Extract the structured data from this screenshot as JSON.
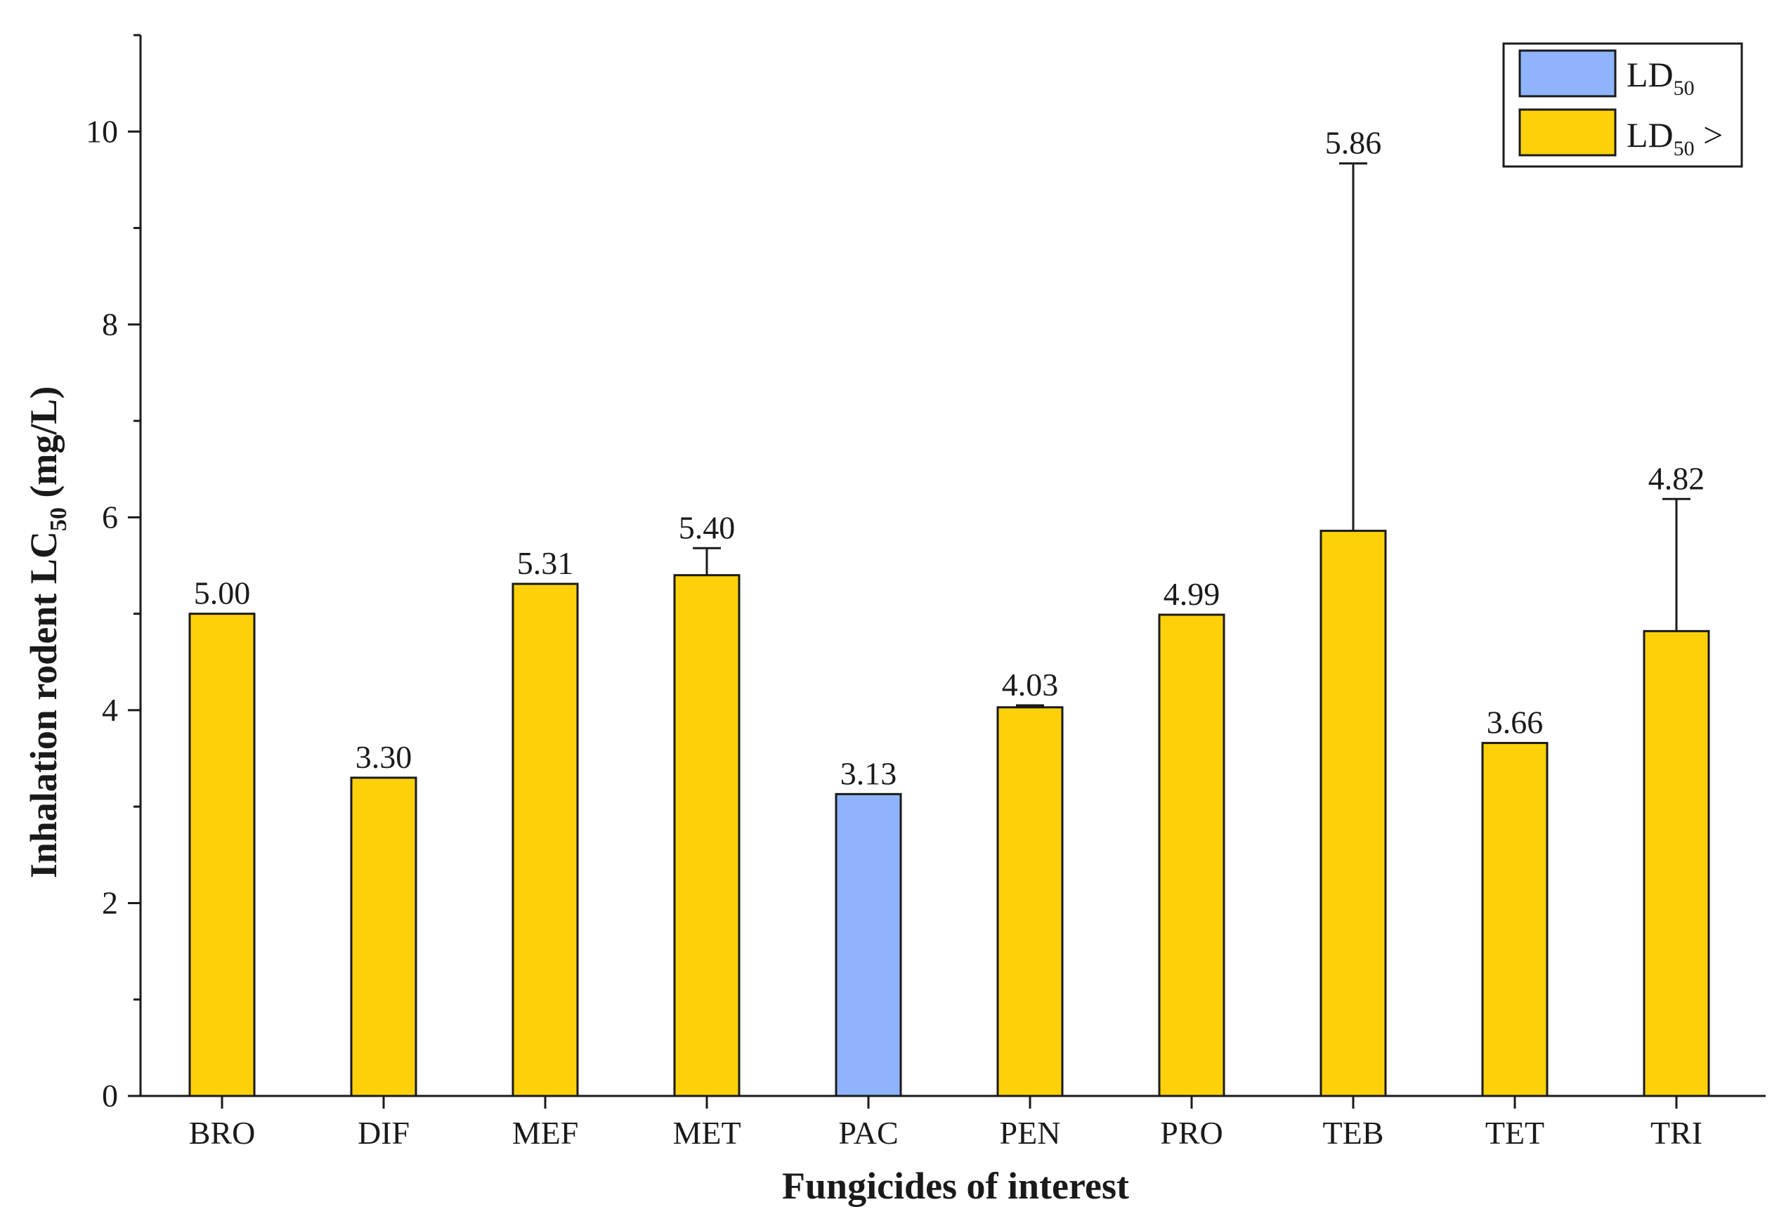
{
  "chart_data": {
    "type": "bar",
    "xlabel": "Fungicides of interest",
    "ylabel": {
      "main": "Inhalation rodent LC",
      "sub": "50",
      "unit": " (mg/L)"
    },
    "ylim": [
      0,
      11
    ],
    "yticks": [
      0,
      2,
      4,
      6,
      8,
      10
    ],
    "yticks_labels": [
      "0",
      "2",
      "4",
      "6",
      "8",
      "10"
    ],
    "grid": false,
    "categories": [
      "BRO",
      "DIF",
      "MEF",
      "MET",
      "PAC",
      "PEN",
      "PRO",
      "TEB",
      "TET",
      "TRI"
    ],
    "values": [
      5.0,
      3.3,
      5.31,
      5.4,
      3.13,
      4.03,
      4.99,
      5.86,
      3.66,
      4.82
    ],
    "labels": [
      "5.00",
      "3.30",
      "5.31",
      "5.40",
      "3.13",
      "4.03",
      "4.99",
      "5.86",
      "3.66",
      "4.82"
    ],
    "error_upper": [
      null,
      null,
      null,
      5.68,
      null,
      4.05,
      null,
      9.67,
      null,
      6.19
    ],
    "series_index": [
      1,
      1,
      1,
      1,
      0,
      1,
      1,
      1,
      1,
      1
    ],
    "series": [
      {
        "name": "LD",
        "sub": "50",
        "suffix": "",
        "color": "#8fb4fb"
      },
      {
        "name": "LD",
        "sub": "50",
        "suffix": " >",
        "color": "#fdd10a"
      }
    ],
    "legend_position": "top-right"
  }
}
